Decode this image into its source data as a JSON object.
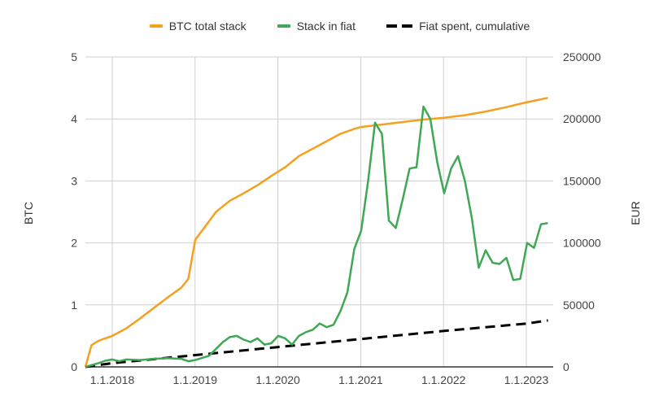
{
  "legend": {
    "btc_label": "BTC total stack",
    "fiat_value_label": "Stack in fiat",
    "fiat_spent_label": "Fiat spent, cumulative"
  },
  "colors": {
    "btc": "#f5a01f",
    "fiat_value": "#3fa854",
    "fiat_spent": "#000000",
    "grid": "#d0d0d0"
  },
  "axes": {
    "left_title": "BTC",
    "right_title": "EUR",
    "left_ticks": [
      "0",
      "1",
      "2",
      "3",
      "4",
      "5"
    ],
    "right_ticks": [
      "0",
      "50000",
      "100000",
      "150000",
      "200000",
      "250000"
    ],
    "x_ticks": [
      "1.1.2018",
      "1.1.2019",
      "1.1.2020",
      "1.1.2021",
      "1.1.2022",
      "1.1.2023"
    ]
  },
  "chart_data": {
    "type": "line",
    "title": "",
    "xlabel": "",
    "ylabel": "BTC",
    "ylabel_right": "EUR",
    "ylim": [
      0,
      5
    ],
    "ylim_right": [
      0,
      250000
    ],
    "grid": true,
    "legend_position": "top",
    "x_ticks": [
      "1.1.2018",
      "1.1.2019",
      "1.1.2020",
      "1.1.2021",
      "1.1.2022",
      "1.1.2023"
    ],
    "x_range": [
      "2017-09",
      "2023-04"
    ],
    "series": [
      {
        "name": "BTC total stack",
        "axis": "left",
        "color": "#f5a01f",
        "x": [
          "2017-09",
          "2017-10",
          "2017-11",
          "2017-12",
          "2018-01",
          "2018-03",
          "2018-05",
          "2018-07",
          "2018-09",
          "2018-11",
          "2018-12",
          "2019-01",
          "2019-02",
          "2019-04",
          "2019-06",
          "2019-08",
          "2019-10",
          "2019-12",
          "2020-02",
          "2020-04",
          "2020-06",
          "2020-08",
          "2020-10",
          "2020-12",
          "2021-01",
          "2021-04",
          "2021-07",
          "2021-10",
          "2022-01",
          "2022-04",
          "2022-07",
          "2022-10",
          "2023-01",
          "2023-04"
        ],
        "values": [
          0,
          0.35,
          0.42,
          0.46,
          0.5,
          0.62,
          0.78,
          0.95,
          1.12,
          1.28,
          1.42,
          2.05,
          2.2,
          2.5,
          2.68,
          2.8,
          2.93,
          3.08,
          3.22,
          3.4,
          3.52,
          3.64,
          3.76,
          3.84,
          3.87,
          3.91,
          3.95,
          3.99,
          4.02,
          4.06,
          4.12,
          4.19,
          4.27,
          4.34
        ]
      },
      {
        "name": "Stack in fiat",
        "axis": "right",
        "color": "#3fa854",
        "x": [
          "2017-09",
          "2017-11",
          "2017-12",
          "2018-01",
          "2018-02",
          "2018-03",
          "2018-05",
          "2018-07",
          "2018-09",
          "2018-11",
          "2018-12",
          "2019-01",
          "2019-03",
          "2019-05",
          "2019-06",
          "2019-07",
          "2019-08",
          "2019-09",
          "2019-10",
          "2019-11",
          "2019-12",
          "2020-01",
          "2020-02",
          "2020-03",
          "2020-04",
          "2020-05",
          "2020-06",
          "2020-07",
          "2020-08",
          "2020-09",
          "2020-10",
          "2020-11",
          "2020-12",
          "2021-01",
          "2021-02",
          "2021-03",
          "2021-04",
          "2021-05",
          "2021-06",
          "2021-07",
          "2021-08",
          "2021-09",
          "2021-10",
          "2021-11",
          "2021-12",
          "2022-01",
          "2022-02",
          "2022-03",
          "2022-04",
          "2022-05",
          "2022-06",
          "2022-07",
          "2022-08",
          "2022-09",
          "2022-10",
          "2022-11",
          "2022-12",
          "2023-01",
          "2023-02",
          "2023-03",
          "2023-04"
        ],
        "values": [
          0,
          3000,
          5000,
          6000,
          4500,
          6000,
          5500,
          6500,
          7000,
          6500,
          4500,
          5500,
          9000,
          20000,
          24000,
          25000,
          22000,
          20000,
          23000,
          18000,
          19000,
          25000,
          23000,
          18000,
          25000,
          28000,
          30000,
          35000,
          32000,
          34000,
          45000,
          60000,
          95000,
          110000,
          150000,
          197000,
          188000,
          118000,
          112000,
          135000,
          160000,
          161000,
          210000,
          200000,
          165000,
          140000,
          160000,
          170000,
          150000,
          120000,
          80000,
          94000,
          84000,
          83000,
          88000,
          70000,
          71000,
          100000,
          96000,
          115000,
          116000
        ]
      },
      {
        "name": "Fiat spent, cumulative",
        "axis": "right",
        "color": "#000000",
        "style": "dashed",
        "x": [
          "2017-09",
          "2018-01",
          "2019-01",
          "2020-01",
          "2021-01",
          "2022-01",
          "2023-01",
          "2023-04"
        ],
        "values": [
          0,
          3000,
          9500,
          16000,
          22500,
          29000,
          35000,
          37500
        ]
      }
    ]
  }
}
